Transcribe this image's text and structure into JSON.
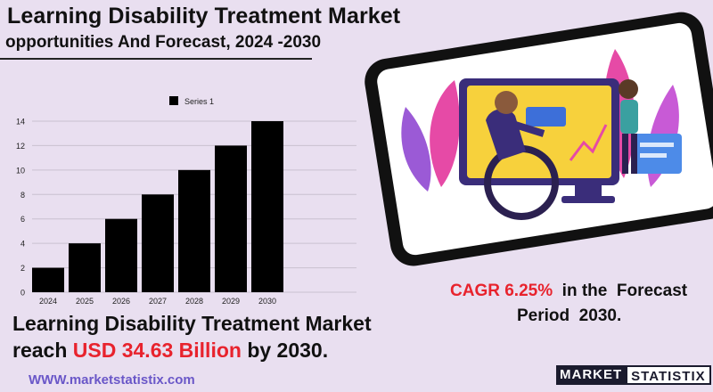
{
  "header": {
    "title": "Learning Disability Treatment Market",
    "subtitle": "opportunities And Forecast, 2024 -2030"
  },
  "chart_data": {
    "type": "bar",
    "categories": [
      "2024",
      "2025",
      "2026",
      "2027",
      "2028",
      "2029",
      "2030"
    ],
    "series": [
      {
        "name": "Series 1",
        "values": [
          2,
          4,
          6,
          8,
          10,
          12,
          14
        ],
        "color": "#000000"
      }
    ],
    "yticks": [
      0,
      2,
      4,
      6,
      8,
      10,
      12,
      14
    ],
    "ylim": [
      0,
      14
    ],
    "legend_position": "top",
    "grid": true
  },
  "summary": {
    "line1": "Learning Disability Treatment Market",
    "line2_prefix": "reach ",
    "line2_highlight": "USD 34.63 Billion",
    "line2_suffix": " by 2030."
  },
  "cagr": {
    "value": "CAGR 6.25%",
    "text_a": "  in the  Forecast",
    "text_b": "Period  2030."
  },
  "website": "WWW.marketstatistix.com",
  "logo": {
    "part1": "MARKET",
    "part2": "STATISTIX"
  },
  "colors": {
    "accent": "#e8232d",
    "background": "#e9dff0",
    "link": "#6a57c8"
  }
}
